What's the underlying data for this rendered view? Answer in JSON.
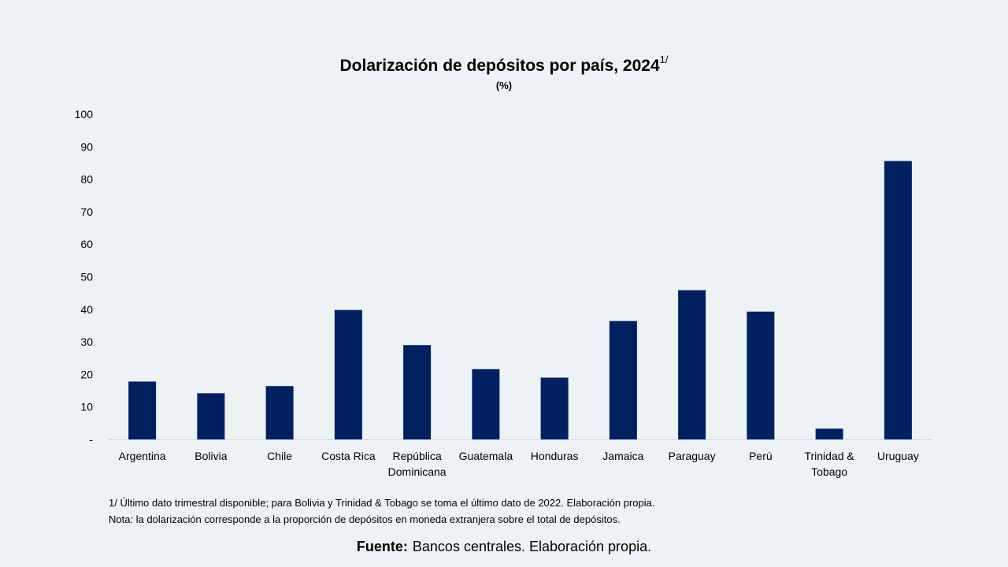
{
  "chart_data": {
    "type": "bar",
    "title": "Dolarización de depósitos por país, 2024",
    "title_superscript": "1/",
    "subtitle": "(%)",
    "categories": [
      "Argentina",
      "Bolivia",
      "Chile",
      "Costa Rica",
      "República Dominicana",
      "Guatemala",
      "Honduras",
      "Jamaica",
      "Paraguay",
      "Perú",
      "Trinidad & Tobago",
      "Uruguay"
    ],
    "category_lines": [
      [
        "Argentina"
      ],
      [
        "Bolivia"
      ],
      [
        "Chile"
      ],
      [
        "Costa Rica"
      ],
      [
        "República",
        "Dominicana"
      ],
      [
        "Guatemala"
      ],
      [
        "Honduras"
      ],
      [
        "Jamaica"
      ],
      [
        "Paraguay"
      ],
      [
        "Perú"
      ],
      [
        "Trinidad &",
        "Tobago"
      ],
      [
        "Uruguay"
      ]
    ],
    "values": [
      17.8,
      14.2,
      16.4,
      39.8,
      29.0,
      21.6,
      19.0,
      36.4,
      45.9,
      39.3,
      3.3,
      85.6
    ],
    "ylim": [
      0,
      100
    ],
    "yticks": [
      0,
      10,
      20,
      30,
      40,
      50,
      60,
      70,
      80,
      90,
      100
    ],
    "ytick_labels": [
      "-",
      "10",
      "20",
      "30",
      "40",
      "50",
      "60",
      "70",
      "80",
      "90",
      "100"
    ],
    "grid": false,
    "bar_color": "#002060"
  },
  "notes": {
    "line1": "1/ Último dato trimestral disponible; para Bolivia y Trinidad & Tobago se toma el último dato de 2022. Elaboración propia.",
    "line2": "Nota: la dolarización corresponde a la proporción de depósitos en moneda extranjera sobre el total de depósitos."
  },
  "source": {
    "label": "Fuente:",
    "text": "Bancos centrales. Elaboración propia."
  }
}
